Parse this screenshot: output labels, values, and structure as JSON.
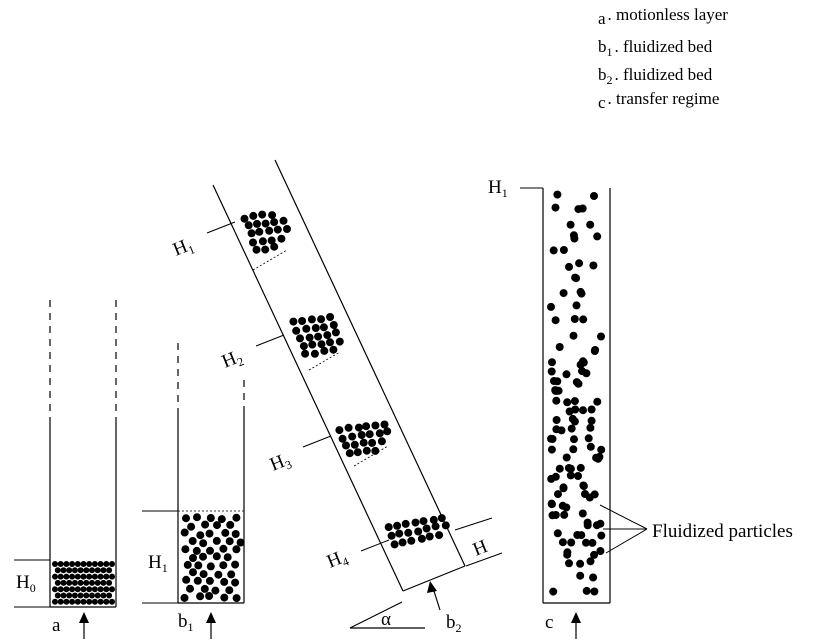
{
  "legend": [
    {
      "letter": "a",
      "sub": "",
      "text": ". motionless layer"
    },
    {
      "letter": "b",
      "sub": "1",
      "text": ".  fluidized bed"
    },
    {
      "letter": "b",
      "sub": "2",
      "text": ". fluidized bed"
    },
    {
      "letter": "c",
      "sub": "",
      "text": ". transfer regime"
    }
  ],
  "column_a": {
    "label": "a",
    "height": {
      "main": "H",
      "sub": "0"
    }
  },
  "column_b1": {
    "label": {
      "main": "b",
      "sub": "1"
    },
    "height": {
      "main": "H",
      "sub": "1"
    }
  },
  "column_b2": {
    "label": {
      "main": "b",
      "sub": "2"
    },
    "angle": "α",
    "bed_height": "H",
    "levels": [
      {
        "main": "H",
        "sub": "1"
      },
      {
        "main": "H",
        "sub": "2"
      },
      {
        "main": "H",
        "sub": "3"
      },
      {
        "main": "H",
        "sub": "4"
      }
    ]
  },
  "column_c": {
    "label": "c",
    "height": {
      "main": "H",
      "sub": "1"
    }
  },
  "annotation": {
    "text": "Fluidized particles"
  },
  "colors": {
    "ink": "#000000",
    "background": "#ffffff"
  }
}
